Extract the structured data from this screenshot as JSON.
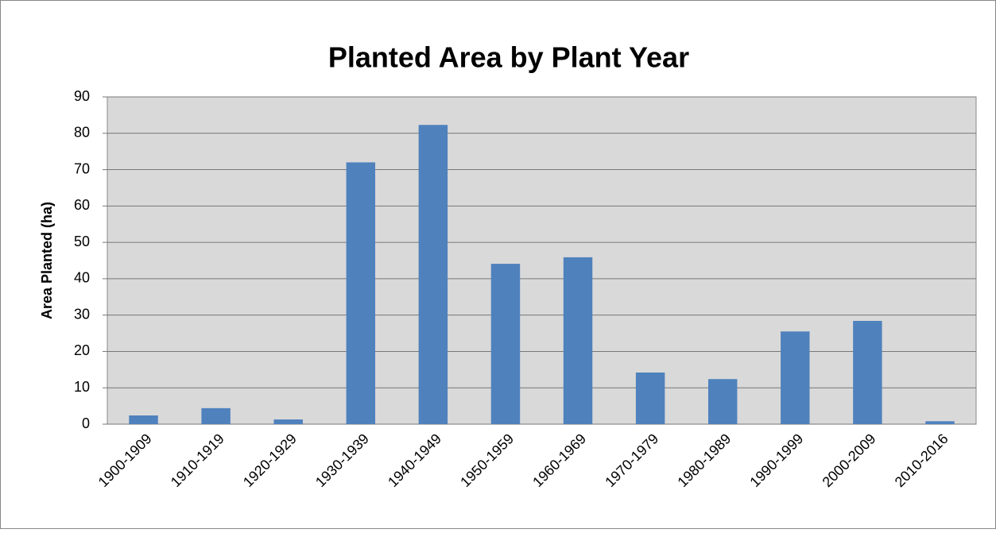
{
  "chart_data": {
    "type": "bar",
    "title": "Planted Area by Plant Year",
    "y_label": "Area Planted (ha)",
    "categories": [
      "1900-1909",
      "1910-1919",
      "1920-1929",
      "1930-1939",
      "1940-1949",
      "1950-1959",
      "1960-1969",
      "1970-1979",
      "1980-1989",
      "1990-1999",
      "2000-2009",
      "2010-2016"
    ],
    "values": [
      2.4,
      4.4,
      1.3,
      72,
      82.3,
      44.1,
      45.9,
      14.2,
      12.4,
      25.5,
      28.4,
      0.8
    ],
    "color": "#4f81bd",
    "ylim": [
      0,
      90
    ],
    "yticks": [
      0,
      10,
      20,
      30,
      40,
      50,
      60,
      70,
      80,
      90
    ],
    "grid": true
  }
}
